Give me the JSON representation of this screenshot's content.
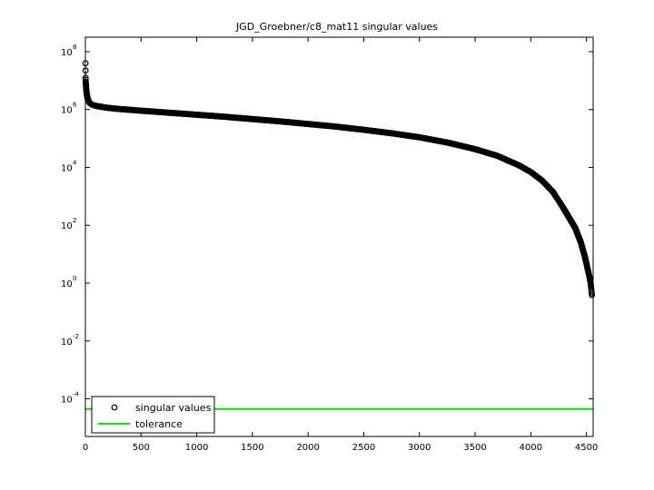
{
  "chart_data": {
    "type": "scatter",
    "title": "JGD_Groebner/c8_mat11 singular values",
    "xlabel": "",
    "ylabel": "",
    "xlim": [
      0,
      4560
    ],
    "ylim_log10": [
      -5.3,
      8.5
    ],
    "y_scale": "log",
    "grid": false,
    "legend_placement": "bottom-left",
    "x_ticks": [
      0,
      500,
      1000,
      1500,
      2000,
      2500,
      3000,
      3500,
      4000,
      4500
    ],
    "y_tick_exponents": [
      -4,
      -2,
      0,
      2,
      4,
      6,
      8
    ],
    "y_tick_base": "10",
    "series": [
      {
        "name": "singular values",
        "marker": "circle",
        "color": "#000000",
        "points_log10": [
          [
            1,
            7.6
          ],
          [
            2,
            7.1
          ],
          [
            3,
            6.95
          ],
          [
            5,
            6.85
          ],
          [
            8,
            6.7
          ],
          [
            12,
            6.55
          ],
          [
            18,
            6.42
          ],
          [
            25,
            6.32
          ],
          [
            40,
            6.22
          ],
          [
            60,
            6.17
          ],
          [
            100,
            6.12
          ],
          [
            150,
            6.09
          ],
          [
            200,
            6.06
          ],
          [
            300,
            6.02
          ],
          [
            400,
            5.99
          ],
          [
            500,
            5.96
          ],
          [
            750,
            5.89
          ],
          [
            1000,
            5.82
          ],
          [
            1250,
            5.75
          ],
          [
            1500,
            5.67
          ],
          [
            1750,
            5.59
          ],
          [
            2000,
            5.5
          ],
          [
            2250,
            5.41
          ],
          [
            2500,
            5.3
          ],
          [
            2750,
            5.18
          ],
          [
            3000,
            5.04
          ],
          [
            3250,
            4.86
          ],
          [
            3500,
            4.63
          ],
          [
            3700,
            4.4
          ],
          [
            3900,
            4.06
          ],
          [
            4000,
            3.84
          ],
          [
            4100,
            3.55
          ],
          [
            4200,
            3.15
          ],
          [
            4300,
            2.55
          ],
          [
            4400,
            1.9
          ],
          [
            4450,
            1.4
          ],
          [
            4490,
            0.85
          ],
          [
            4510,
            0.5
          ],
          [
            4525,
            0.25
          ],
          [
            4535,
            0.05
          ],
          [
            4542,
            -0.15
          ],
          [
            4546,
            -0.3
          ],
          [
            4550,
            -0.45
          ]
        ]
      },
      {
        "name": "tolerance",
        "marker": "line",
        "color": "#00dd00",
        "y_log10": -4.35
      }
    ]
  }
}
